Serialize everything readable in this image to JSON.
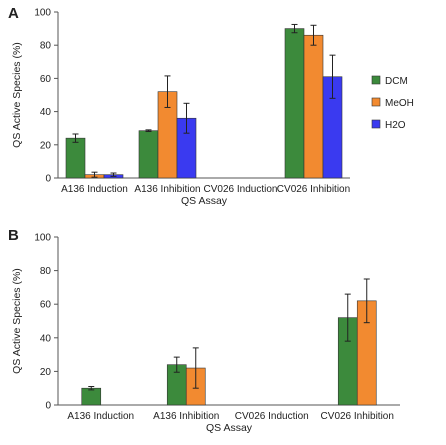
{
  "chart_data": [
    {
      "panel": "A",
      "type": "bar",
      "categories": [
        "A136 Induction",
        "A136 Inhibition",
        "CV026 Induction",
        "CV026 Inhibition"
      ],
      "series": [
        {
          "name": "DCM",
          "color": "#3c8a3c",
          "values": [
            24,
            28.5,
            0,
            90
          ],
          "errors": [
            2.5,
            0.5,
            0,
            2.5
          ]
        },
        {
          "name": "MeOH",
          "color": "#f28a30",
          "values": [
            2,
            52,
            0,
            86
          ],
          "errors": [
            1.5,
            9.5,
            0,
            6
          ]
        },
        {
          "name": "H2O",
          "color": "#3a3af0",
          "values": [
            2,
            36,
            0,
            61
          ],
          "errors": [
            1,
            9,
            0,
            13
          ]
        }
      ],
      "xlabel": "QS Assay",
      "ylabel": "QS Active Species (%)",
      "ylim": [
        0,
        100
      ],
      "yticks": [
        0,
        20,
        40,
        60,
        80,
        100
      ],
      "legend_position": "right",
      "grid": false
    },
    {
      "panel": "B",
      "type": "bar",
      "categories": [
        "A136 Induction",
        "A136 Inhibition",
        "CV026 Induction",
        "CV026 Inhibition"
      ],
      "series": [
        {
          "color": "#3c8a3c",
          "values": [
            10,
            24,
            0,
            52
          ],
          "errors": [
            1,
            4.5,
            0,
            14
          ]
        },
        {
          "color": "#f28a30",
          "values": [
            0,
            22,
            0,
            62
          ],
          "errors": [
            0,
            12,
            0,
            13
          ]
        }
      ],
      "xlabel": "QS Assay",
      "ylabel": "QS Active Species (%)",
      "ylim": [
        0,
        100
      ],
      "yticks": [
        0,
        20,
        40,
        60,
        80,
        100
      ],
      "grid": false
    }
  ]
}
